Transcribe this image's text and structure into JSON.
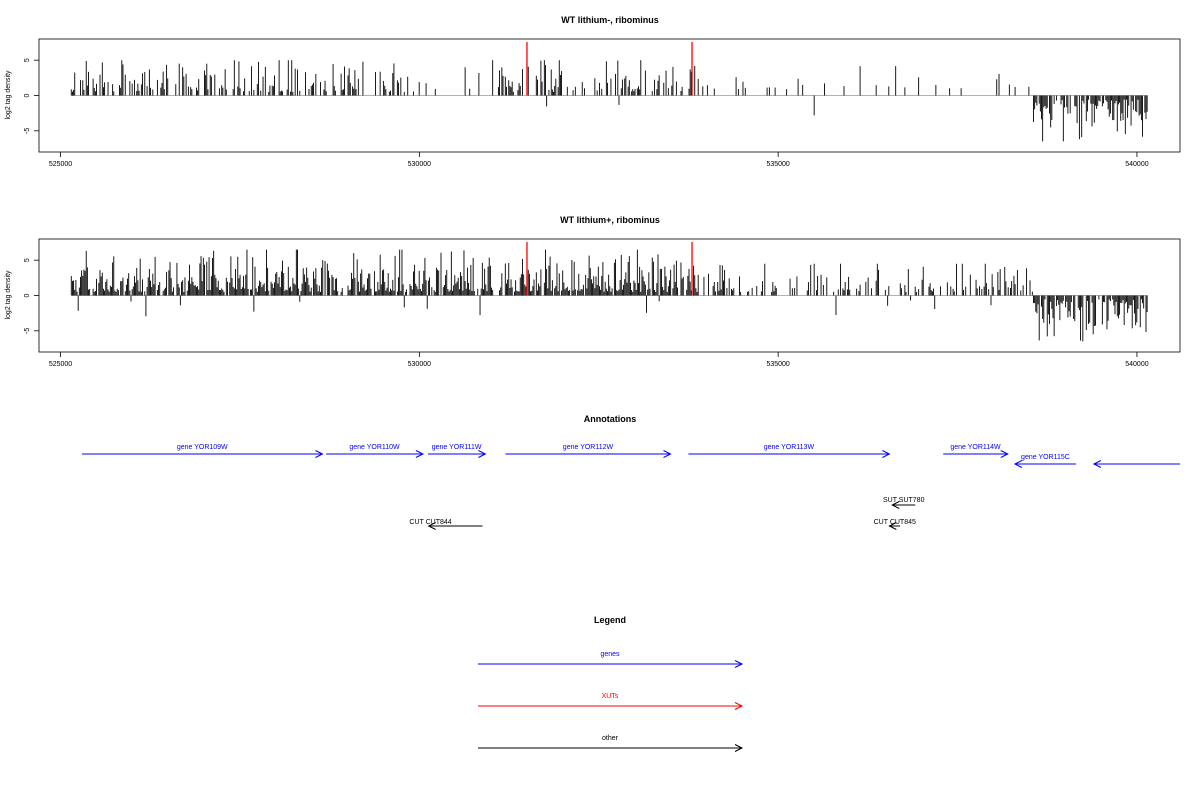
{
  "chart_data": [
    {
      "type": "bar",
      "title": "WT lithium-, ribominus",
      "ylabel": "log2 tag density",
      "xlim": [
        524700,
        540600
      ],
      "ylim": [
        -8,
        8
      ],
      "xticks": [
        525000,
        530000,
        535000,
        540000
      ],
      "yticks": [
        -5,
        0,
        5
      ],
      "grid": false,
      "mark_color": "#ff0000",
      "highlight_positions": [
        531500,
        533800
      ]
    },
    {
      "type": "bar",
      "title": "WT lithium+, ribominus",
      "ylabel": "log2 tag density",
      "xlim": [
        524700,
        540600
      ],
      "ylim": [
        -8,
        8
      ],
      "xticks": [
        525000,
        530000,
        535000,
        540000
      ],
      "yticks": [
        -5,
        0,
        5
      ],
      "grid": false,
      "mark_color": "#ff0000",
      "highlight_positions": [
        531500,
        533800
      ]
    }
  ],
  "annotations": {
    "title": "Annotations",
    "genes_color": "#0000ff",
    "other_color": "#000000",
    "genes": [
      {
        "label": "gene YOR109W",
        "start": 525300,
        "end": 528650,
        "strand": "+"
      },
      {
        "label": "gene YOR110W",
        "start": 528700,
        "end": 530050,
        "strand": "+"
      },
      {
        "label": "gene YOR111W",
        "start": 530120,
        "end": 530920,
        "strand": "+"
      },
      {
        "label": "gene YOR112W",
        "start": 531200,
        "end": 533500,
        "strand": "+"
      },
      {
        "label": "gene YOR113W",
        "start": 533750,
        "end": 536550,
        "strand": "+"
      },
      {
        "label": "gene YOR114W",
        "start": 537300,
        "end": 538200,
        "strand": "+"
      },
      {
        "label": "gene YOR115C",
        "start": 538300,
        "end": 539150,
        "strand": "-"
      },
      {
        "label": "",
        "start": 539400,
        "end": 540600,
        "strand": "-"
      }
    ],
    "other": [
      {
        "label": "SUT SUT780",
        "start": 536590,
        "end": 536910,
        "strand": "-"
      },
      {
        "label": "CUT CUT844",
        "start": 530130,
        "end": 530880,
        "strand": "-"
      },
      {
        "label": "CUT CUT845",
        "start": 536550,
        "end": 536700,
        "strand": "-"
      }
    ]
  },
  "legend": {
    "title": "Legend",
    "items": [
      {
        "label": "genes",
        "color": "#0000ff"
      },
      {
        "label": "XUTs",
        "color": "#ff0000"
      },
      {
        "label": "other",
        "color": "#000000"
      }
    ]
  }
}
